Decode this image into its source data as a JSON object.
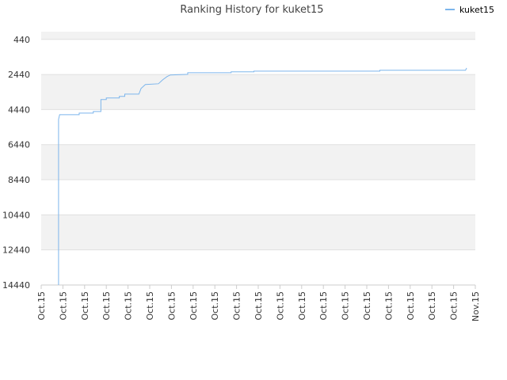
{
  "chart_data": {
    "type": "line",
    "title": "Ranking History for kuket15",
    "legend": "top-right",
    "grid": true,
    "xlim": [
      0,
      20
    ],
    "xticks": [
      {
        "value": 0,
        "label": "Oct.15"
      },
      {
        "value": 1,
        "label": "Oct.15"
      },
      {
        "value": 2,
        "label": "Oct.15"
      },
      {
        "value": 3,
        "label": "Oct.15"
      },
      {
        "value": 4,
        "label": "Oct.15"
      },
      {
        "value": 5,
        "label": "Oct.15"
      },
      {
        "value": 6,
        "label": "Oct.15"
      },
      {
        "value": 7,
        "label": "Oct.15"
      },
      {
        "value": 8,
        "label": "Oct.15"
      },
      {
        "value": 9,
        "label": "Oct.15"
      },
      {
        "value": 10,
        "label": "Oct.15"
      },
      {
        "value": 11,
        "label": "Oct.15"
      },
      {
        "value": 12,
        "label": "Oct.15"
      },
      {
        "value": 13,
        "label": "Oct.15"
      },
      {
        "value": 14,
        "label": "Oct.15"
      },
      {
        "value": 15,
        "label": "Oct.15"
      },
      {
        "value": 16,
        "label": "Oct.15"
      },
      {
        "value": 17,
        "label": "Oct.15"
      },
      {
        "value": 18,
        "label": "Oct.15"
      },
      {
        "value": 19,
        "label": "Oct.15"
      },
      {
        "value": 20,
        "label": "Nov.15"
      }
    ],
    "ylim": [
      14440,
      0
    ],
    "yticks": [
      14440,
      12440,
      10440,
      8440,
      6440,
      4440,
      2440,
      440
    ],
    "series": [
      {
        "name": "kuket15",
        "color": "#7cb5ec",
        "x": [
          0.8,
          0.8,
          0.85,
          1.75,
          1.75,
          2.4,
          2.4,
          2.75,
          2.75,
          3.0,
          3.0,
          3.6,
          3.6,
          3.85,
          3.85,
          4.5,
          4.6,
          4.8,
          5.4,
          5.6,
          5.8,
          5.95,
          6.75,
          6.75,
          8.75,
          8.75,
          9.8,
          9.8,
          15.6,
          15.6,
          19.55,
          19.6
        ],
        "values": [
          14440,
          5000,
          4730,
          4730,
          4640,
          4640,
          4550,
          4550,
          3870,
          3870,
          3780,
          3780,
          3690,
          3690,
          3560,
          3560,
          3240,
          3010,
          2970,
          2740,
          2560,
          2470,
          2430,
          2340,
          2340,
          2290,
          2290,
          2250,
          2250,
          2200,
          2200,
          2070
        ]
      }
    ]
  }
}
